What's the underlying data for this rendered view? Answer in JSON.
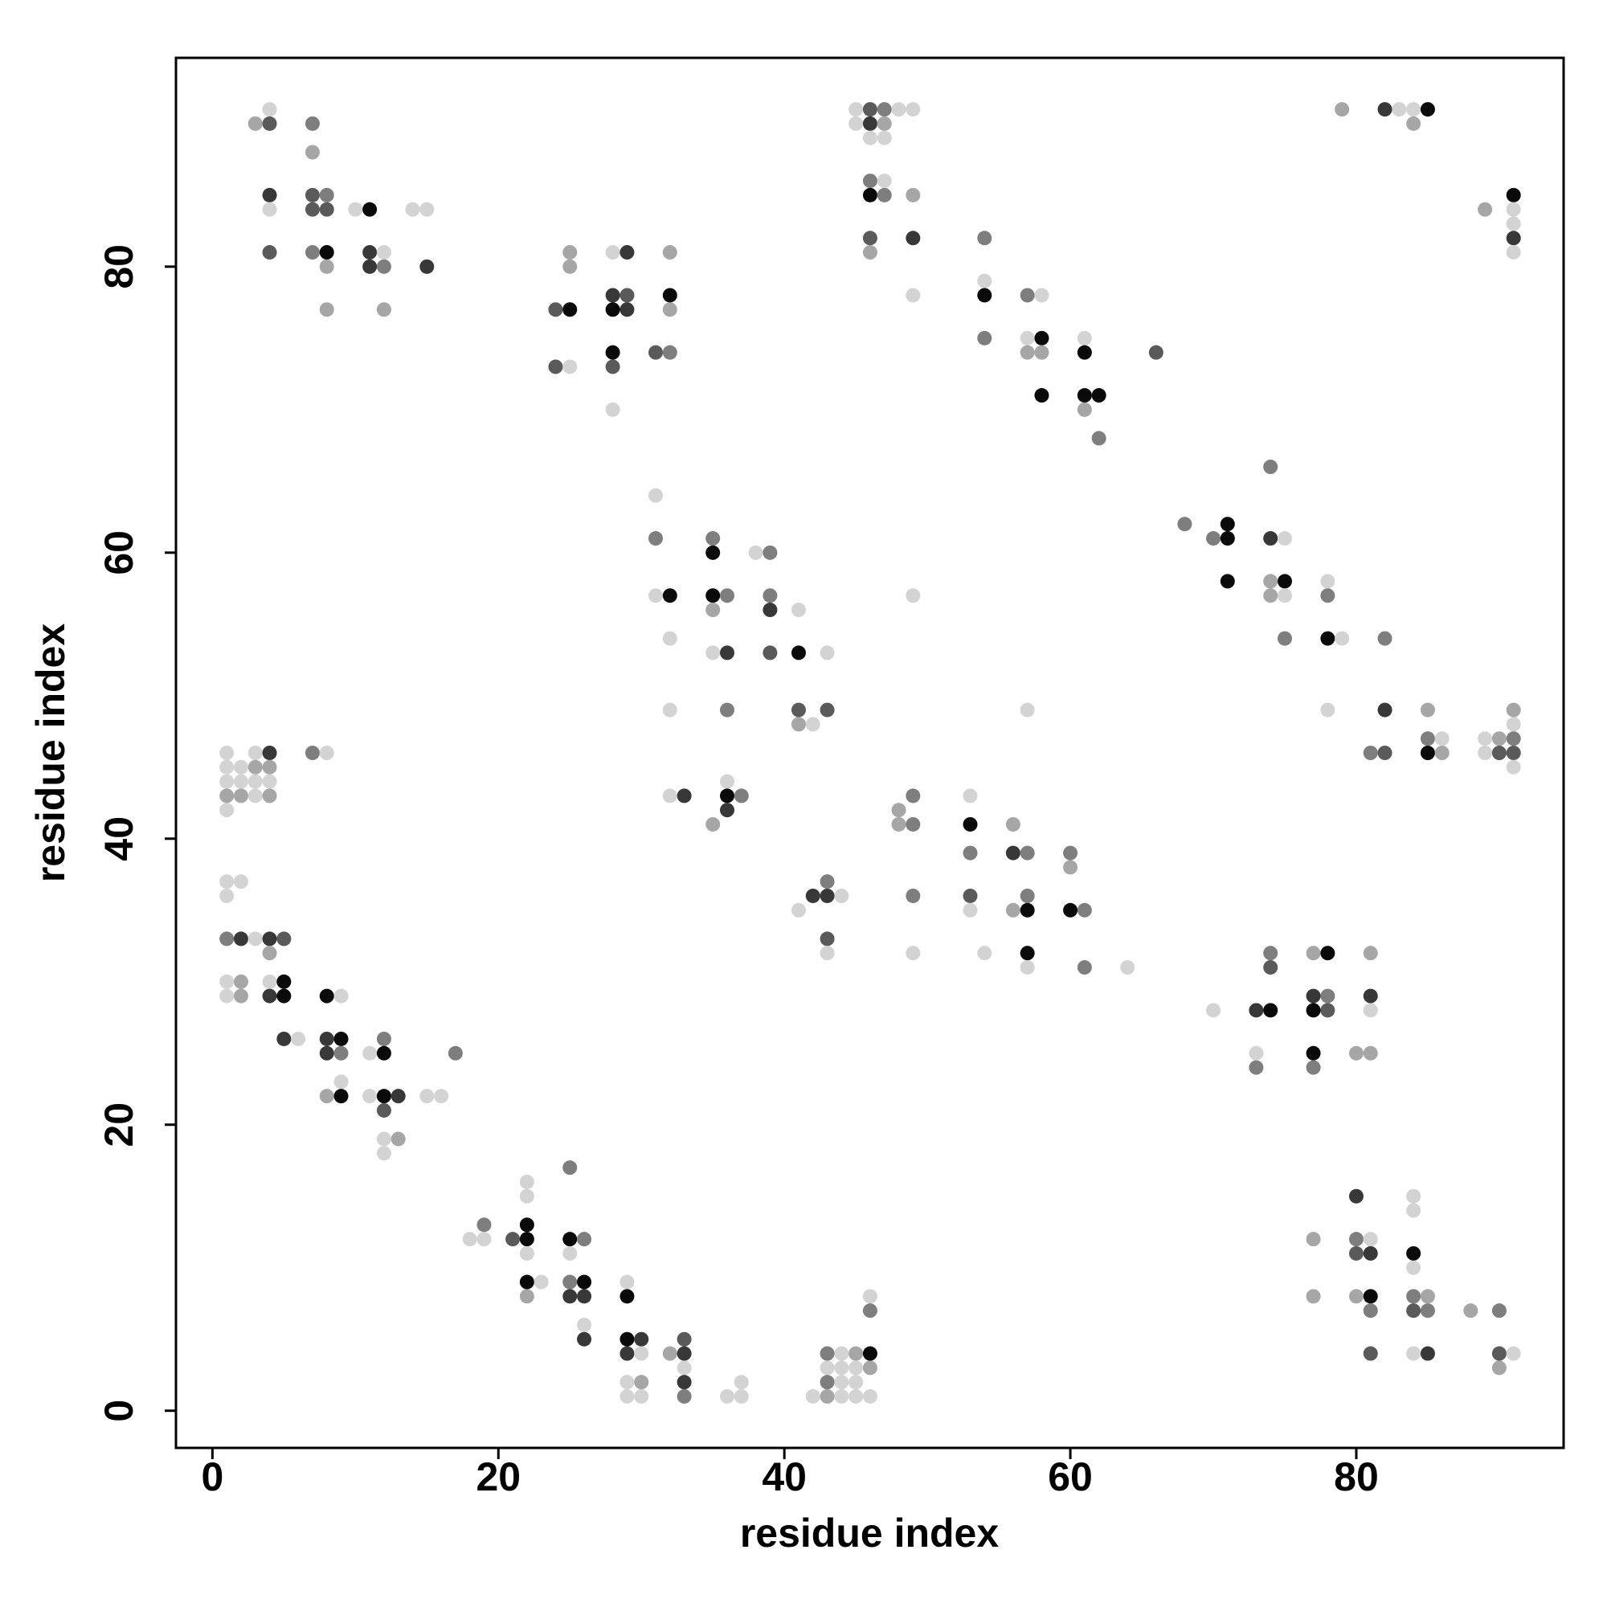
{
  "chart_data": {
    "type": "scatter",
    "x_label": "residue index",
    "y_label": "residue index",
    "xlim": [
      -2.55,
      94.5
    ],
    "ylim": [
      -2.6,
      94.6
    ],
    "xticks": [
      0,
      20,
      40,
      60,
      80
    ],
    "yticks": [
      0,
      20,
      40,
      60,
      80
    ],
    "x": [
      3,
      4,
      4,
      7,
      7,
      4,
      4,
      4,
      7,
      7,
      8,
      8,
      7,
      8,
      8,
      8,
      10,
      11,
      11,
      11,
      12,
      12,
      12,
      14,
      15,
      15,
      25,
      25,
      28,
      29,
      32,
      24,
      25,
      28,
      29,
      28,
      29,
      32,
      32,
      24,
      25,
      28,
      28,
      31,
      32,
      28,
      45,
      45,
      46,
      46,
      47,
      47,
      46,
      47,
      48,
      49,
      46,
      47,
      46,
      47,
      49,
      46,
      46,
      49,
      49,
      54,
      54,
      54,
      54,
      57,
      58,
      57,
      58,
      57,
      58,
      58,
      61,
      61,
      61,
      62,
      61,
      62,
      66,
      79,
      82,
      83,
      84,
      84,
      85,
      89,
      91,
      91,
      91,
      91,
      91,
      31,
      31,
      31,
      32,
      32,
      35,
      35,
      35,
      36,
      35,
      38,
      39,
      39,
      39,
      41,
      35,
      36,
      39,
      41,
      43,
      32,
      36,
      41,
      41,
      42,
      43,
      32,
      33,
      36,
      36,
      37,
      36,
      35,
      74,
      68,
      70,
      71,
      71,
      74,
      75,
      71,
      74,
      75,
      74,
      75,
      75,
      78,
      78,
      78,
      79,
      78,
      82,
      82,
      81,
      82,
      85,
      85,
      86,
      85,
      86,
      89,
      89,
      90,
      90,
      91,
      91,
      91,
      91,
      91,
      48,
      48,
      49,
      49,
      49,
      49,
      53,
      53,
      53,
      53,
      53,
      54,
      56,
      56,
      57,
      57,
      56,
      57,
      57,
      57,
      60,
      60,
      60,
      61,
      61,
      64,
      57,
      49,
      41,
      42,
      43,
      43,
      44,
      43,
      43,
      70,
      73,
      74,
      74,
      74,
      73,
      73,
      77,
      78,
      77,
      78,
      77,
      78,
      77,
      77,
      81,
      81,
      81,
      80,
      81,
      1,
      1,
      1,
      1,
      1,
      2,
      2,
      2,
      3,
      3,
      3,
      3,
      4,
      4,
      4,
      4,
      7,
      8,
      1,
      2,
      1,
      1,
      2,
      3,
      4,
      5,
      4,
      1,
      2,
      4,
      5,
      1,
      2,
      4,
      5,
      5,
      6,
      8,
      9,
      8,
      9,
      8,
      9,
      9,
      8,
      9,
      11,
      12,
      12,
      11,
      12,
      13,
      12,
      12,
      13,
      12,
      15,
      16,
      17,
      18,
      19,
      19,
      21,
      22,
      22,
      22,
      22,
      22,
      22,
      23,
      22,
      25,
      25,
      26,
      25,
      25,
      26,
      25,
      26,
      26,
      26,
      29,
      29,
      29,
      30,
      29,
      30,
      29,
      30,
      29,
      30,
      32,
      33,
      33,
      33,
      33,
      33,
      36,
      37,
      37,
      42,
      43,
      43,
      43,
      43,
      44,
      44,
      44,
      44,
      45,
      45,
      45,
      45,
      46,
      46,
      46,
      46,
      46,
      77,
      77,
      80,
      80,
      81,
      80,
      81,
      80,
      81,
      81,
      81,
      84,
      84,
      84,
      84,
      84,
      85,
      84,
      85,
      84,
      85,
      88,
      90,
      90,
      91,
      90
    ],
    "values": [
      90,
      91,
      90,
      90,
      88,
      85,
      84,
      81,
      85,
      84,
      85,
      84,
      81,
      81,
      80,
      77,
      84,
      84,
      81,
      80,
      81,
      80,
      77,
      84,
      84,
      80,
      81,
      80,
      81,
      81,
      81,
      77,
      77,
      78,
      78,
      77,
      77,
      78,
      77,
      73,
      73,
      74,
      73,
      74,
      74,
      70,
      91,
      90,
      91,
      90,
      91,
      90,
      89,
      89,
      91,
      91,
      86,
      86,
      85,
      85,
      85,
      82,
      81,
      82,
      78,
      82,
      79,
      78,
      75,
      78,
      78,
      75,
      75,
      74,
      74,
      71,
      75,
      74,
      71,
      71,
      70,
      68,
      74,
      91,
      91,
      91,
      91,
      90,
      91,
      84,
      85,
      84,
      83,
      82,
      81,
      64,
      61,
      57,
      57,
      54,
      61,
      60,
      57,
      57,
      56,
      60,
      60,
      57,
      56,
      56,
      53,
      53,
      53,
      53,
      53,
      49,
      49,
      49,
      48,
      48,
      49,
      43,
      43,
      44,
      43,
      43,
      42,
      41,
      66,
      62,
      61,
      62,
      61,
      61,
      61,
      58,
      58,
      58,
      57,
      57,
      54,
      58,
      57,
      54,
      54,
      49,
      54,
      49,
      46,
      46,
      49,
      47,
      47,
      46,
      46,
      47,
      46,
      47,
      46,
      49,
      48,
      47,
      46,
      45,
      42,
      41,
      43,
      41,
      36,
      32,
      43,
      41,
      39,
      36,
      35,
      32,
      41,
      39,
      39,
      36,
      35,
      35,
      32,
      31,
      39,
      38,
      35,
      35,
      31,
      31,
      49,
      57,
      35,
      36,
      37,
      36,
      36,
      33,
      32,
      28,
      28,
      28,
      32,
      31,
      25,
      24,
      32,
      32,
      29,
      29,
      28,
      28,
      25,
      24,
      32,
      29,
      28,
      25,
      25,
      46,
      45,
      44,
      43,
      42,
      45,
      44,
      43,
      46,
      45,
      44,
      43,
      46,
      45,
      44,
      43,
      46,
      46,
      37,
      37,
      36,
      33,
      33,
      33,
      33,
      33,
      32,
      30,
      30,
      30,
      30,
      29,
      29,
      29,
      29,
      26,
      26,
      29,
      29,
      26,
      26,
      25,
      25,
      23,
      22,
      22,
      25,
      26,
      25,
      22,
      22,
      22,
      21,
      19,
      19,
      18,
      22,
      22,
      25,
      12,
      13,
      12,
      12,
      13,
      12,
      16,
      15,
      11,
      9,
      9,
      8,
      17,
      12,
      12,
      11,
      9,
      9,
      8,
      8,
      6,
      5,
      9,
      8,
      5,
      5,
      4,
      4,
      2,
      2,
      1,
      1,
      4,
      5,
      4,
      3,
      2,
      1,
      1,
      2,
      1,
      1,
      4,
      3,
      2,
      1,
      4,
      3,
      2,
      1,
      4,
      3,
      2,
      1,
      8,
      7,
      4,
      3,
      1,
      12,
      8,
      15,
      12,
      12,
      11,
      11,
      8,
      8,
      7,
      4,
      15,
      14,
      11,
      10,
      8,
      8,
      7,
      7,
      4,
      4,
      7,
      7,
      4,
      4,
      3
    ],
    "colors": [
      "#a6a6a6",
      "#d3d3d3",
      "#5a5a5a",
      "#7e7e7e",
      "#a6a6a6",
      "#383838",
      "#d3d3d3",
      "#5a5a5a",
      "#5a5a5a",
      "#5a5a5a",
      "#7e7e7e",
      "#5a5a5a",
      "#7e7e7e",
      "#0a0a0a",
      "#a6a6a6",
      "#a6a6a6",
      "#d3d3d3",
      "#0a0a0a",
      "#383838",
      "#383838",
      "#d3d3d3",
      "#7e7e7e",
      "#a6a6a6",
      "#d3d3d3",
      "#d3d3d3",
      "#383838",
      "#a6a6a6",
      "#a6a6a6",
      "#d3d3d3",
      "#383838",
      "#a6a6a6",
      "#5a5a5a",
      "#0a0a0a",
      "#383838",
      "#5a5a5a",
      "#0a0a0a",
      "#383838",
      "#0a0a0a",
      "#a6a6a6",
      "#5a5a5a",
      "#d3d3d3",
      "#0a0a0a",
      "#5a5a5a",
      "#5a5a5a",
      "#7e7e7e",
      "#d3d3d3",
      "#d3d3d3",
      "#d3d3d3",
      "#5a5a5a",
      "#383838",
      "#7e7e7e",
      "#a6a6a6",
      "#d3d3d3",
      "#d3d3d3",
      "#d3d3d3",
      "#d3d3d3",
      "#7e7e7e",
      "#d3d3d3",
      "#0a0a0a",
      "#7e7e7e",
      "#a6a6a6",
      "#5a5a5a",
      "#a6a6a6",
      "#383838",
      "#d3d3d3",
      "#7e7e7e",
      "#d3d3d3",
      "#0a0a0a",
      "#7e7e7e",
      "#7e7e7e",
      "#d3d3d3",
      "#d3d3d3",
      "#0a0a0a",
      "#a6a6a6",
      "#a6a6a6",
      "#0a0a0a",
      "#d3d3d3",
      "#0a0a0a",
      "#0a0a0a",
      "#0a0a0a",
      "#a6a6a6",
      "#7e7e7e",
      "#5a5a5a",
      "#a6a6a6",
      "#383838",
      "#d3d3d3",
      "#d3d3d3",
      "#a6a6a6",
      "#0a0a0a",
      "#a6a6a6",
      "#0a0a0a",
      "#d3d3d3",
      "#d3d3d3",
      "#383838",
      "#d3d3d3",
      "#d3d3d3",
      "#7e7e7e",
      "#d3d3d3",
      "#0a0a0a",
      "#d3d3d3",
      "#7e7e7e",
      "#0a0a0a",
      "#0a0a0a",
      "#7e7e7e",
      "#a6a6a6",
      "#d3d3d3",
      "#7e7e7e",
      "#7e7e7e",
      "#383838",
      "#d3d3d3",
      "#d3d3d3",
      "#383838",
      "#5a5a5a",
      "#0a0a0a",
      "#d3d3d3",
      "#d3d3d3",
      "#7e7e7e",
      "#5a5a5a",
      "#a6a6a6",
      "#d3d3d3",
      "#5a5a5a",
      "#d3d3d3",
      "#383838",
      "#d3d3d3",
      "#0a0a0a",
      "#7e7e7e",
      "#383838",
      "#a6a6a6",
      "#7e7e7e",
      "#7e7e7e",
      "#7e7e7e",
      "#0a0a0a",
      "#0a0a0a",
      "#383838",
      "#d3d3d3",
      "#0a0a0a",
      "#a6a6a6",
      "#0a0a0a",
      "#a6a6a6",
      "#d3d3d3",
      "#7e7e7e",
      "#d3d3d3",
      "#7e7e7e",
      "#0a0a0a",
      "#d3d3d3",
      "#d3d3d3",
      "#7e7e7e",
      "#383838",
      "#7e7e7e",
      "#5a5a5a",
      "#a6a6a6",
      "#7e7e7e",
      "#d3d3d3",
      "#0a0a0a",
      "#a6a6a6",
      "#d3d3d3",
      "#d3d3d3",
      "#a6a6a6",
      "#5a5a5a",
      "#a6a6a6",
      "#d3d3d3",
      "#7e7e7e",
      "#5a5a5a",
      "#d3d3d3",
      "#a6a6a6",
      "#a6a6a6",
      "#7e7e7e",
      "#7e7e7e",
      "#7e7e7e",
      "#d3d3d3",
      "#d3d3d3",
      "#0a0a0a",
      "#7e7e7e",
      "#5a5a5a",
      "#d3d3d3",
      "#d3d3d3",
      "#a6a6a6",
      "#383838",
      "#7e7e7e",
      "#7e7e7e",
      "#a6a6a6",
      "#0a0a0a",
      "#0a0a0a",
      "#d3d3d3",
      "#7e7e7e",
      "#a6a6a6",
      "#0a0a0a",
      "#7e7e7e",
      "#7e7e7e",
      "#d3d3d3",
      "#d3d3d3",
      "#d3d3d3",
      "#d3d3d3",
      "#383838",
      "#7e7e7e",
      "#383838",
      "#d3d3d3",
      "#5a5a5a",
      "#d3d3d3",
      "#d3d3d3",
      "#383838",
      "#0a0a0a",
      "#7e7e7e",
      "#5a5a5a",
      "#d3d3d3",
      "#7e7e7e",
      "#a6a6a6",
      "#0a0a0a",
      "#383838",
      "#7e7e7e",
      "#0a0a0a",
      "#5a5a5a",
      "#0a0a0a",
      "#7e7e7e",
      "#a6a6a6",
      "#383838",
      "#d3d3d3",
      "#a6a6a6",
      "#a6a6a6",
      "#d3d3d3",
      "#d3d3d3",
      "#d3d3d3",
      "#a6a6a6",
      "#d3d3d3",
      "#d3d3d3",
      "#d3d3d3",
      "#a6a6a6",
      "#d3d3d3",
      "#a6a6a6",
      "#d3d3d3",
      "#d3d3d3",
      "#383838",
      "#a6a6a6",
      "#d3d3d3",
      "#a6a6a6",
      "#7e7e7e",
      "#d3d3d3",
      "#d3d3d3",
      "#d3d3d3",
      "#d3d3d3",
      "#7e7e7e",
      "#383838",
      "#d3d3d3",
      "#383838",
      "#5a5a5a",
      "#a6a6a6",
      "#d3d3d3",
      "#a6a6a6",
      "#d3d3d3",
      "#0a0a0a",
      "#d3d3d3",
      "#a6a6a6",
      "#383838",
      "#0a0a0a",
      "#383838",
      "#d3d3d3",
      "#0a0a0a",
      "#d3d3d3",
      "#383838",
      "#0a0a0a",
      "#383838",
      "#7e7e7e",
      "#d3d3d3",
      "#a6a6a6",
      "#0a0a0a",
      "#d3d3d3",
      "#7e7e7e",
      "#0a0a0a",
      "#d3d3d3",
      "#0a0a0a",
      "#383838",
      "#5a5a5a",
      "#d3d3d3",
      "#a6a6a6",
      "#d3d3d3",
      "#d3d3d3",
      "#d3d3d3",
      "#7e7e7e",
      "#d3d3d3",
      "#7e7e7e",
      "#d3d3d3",
      "#5a5a5a",
      "#0a0a0a",
      "#0a0a0a",
      "#d3d3d3",
      "#d3d3d3",
      "#d3d3d3",
      "#0a0a0a",
      "#d3d3d3",
      "#a6a6a6",
      "#7e7e7e",
      "#0a0a0a",
      "#7e7e7e",
      "#d3d3d3",
      "#7e7e7e",
      "#0a0a0a",
      "#383838",
      "#383838",
      "#d3d3d3",
      "#383838",
      "#d3d3d3",
      "#0a0a0a",
      "#0a0a0a",
      "#383838",
      "#383838",
      "#d3d3d3",
      "#d3d3d3",
      "#a6a6a6",
      "#d3d3d3",
      "#d3d3d3",
      "#a6a6a6",
      "#5a5a5a",
      "#383838",
      "#d3d3d3",
      "#383838",
      "#7e7e7e",
      "#d3d3d3",
      "#d3d3d3",
      "#d3d3d3",
      "#d3d3d3",
      "#7e7e7e",
      "#d3d3d3",
      "#7e7e7e",
      "#a6a6a6",
      "#d3d3d3",
      "#d3d3d3",
      "#d3d3d3",
      "#d3d3d3",
      "#a6a6a6",
      "#d3d3d3",
      "#d3d3d3",
      "#d3d3d3",
      "#d3d3d3",
      "#7e7e7e",
      "#0a0a0a",
      "#a6a6a6",
      "#d3d3d3",
      "#a6a6a6",
      "#a6a6a6",
      "#383838",
      "#7e7e7e",
      "#d3d3d3",
      "#5a5a5a",
      "#383838",
      "#a6a6a6",
      "#0a0a0a",
      "#7e7e7e",
      "#5a5a5a",
      "#d3d3d3",
      "#d3d3d3",
      "#0a0a0a",
      "#d3d3d3",
      "#7e7e7e",
      "#a6a6a6",
      "#5a5a5a",
      "#7e7e7e",
      "#d3d3d3",
      "#383838",
      "#a6a6a6",
      "#7e7e7e",
      "#5a5a5a",
      "#d3d3d3",
      "#a6a6a6"
    ]
  }
}
